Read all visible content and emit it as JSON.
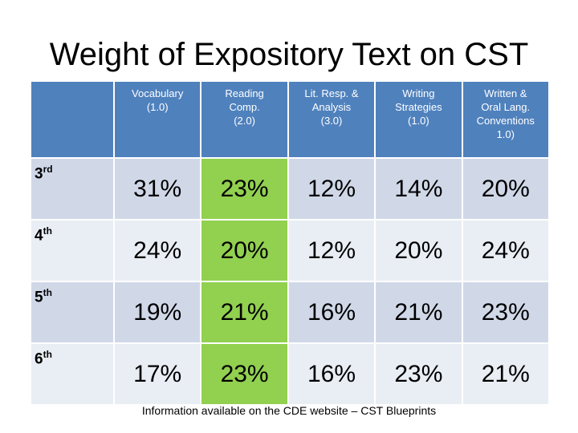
{
  "title": "Weight of Expository Text on CST",
  "colors": {
    "header_bg": "#4f81bd",
    "row_dark": "#d0d8e8",
    "row_light": "#e9edf4",
    "highlight": "#92d050"
  },
  "columns": [
    {
      "line1": "Vocabulary",
      "line2": "(1.0)",
      "line3": "",
      "line4": ""
    },
    {
      "line1": "Reading",
      "line2": "Comp.",
      "line3": "(2.0)",
      "line4": ""
    },
    {
      "line1": "Lit. Resp. &",
      "line2": "Analysis",
      "line3": "(3.0)",
      "line4": ""
    },
    {
      "line1": "Writing",
      "line2": "Strategies",
      "line3": "(1.0)",
      "line4": ""
    },
    {
      "line1": "Written &",
      "line2": "Oral Lang.",
      "line3": "Conventions",
      "line4": "1.0)"
    }
  ],
  "rows": [
    {
      "grade": "3",
      "suffix": "rd",
      "values": [
        "31%",
        "23%",
        "12%",
        "14%",
        "20%"
      ]
    },
    {
      "grade": "4",
      "suffix": "th",
      "values": [
        "24%",
        "20%",
        "12%",
        "20%",
        "24%"
      ]
    },
    {
      "grade": "5",
      "suffix": "th",
      "values": [
        "19%",
        "21%",
        "16%",
        "21%",
        "23%"
      ]
    },
    {
      "grade": "6",
      "suffix": "th",
      "values": [
        "17%",
        "23%",
        "16%",
        "23%",
        "21%"
      ]
    }
  ],
  "highlighted_column": "Reading Comp. (2.0)",
  "footnote": "Information available on the CDE website – CST Blueprints"
}
